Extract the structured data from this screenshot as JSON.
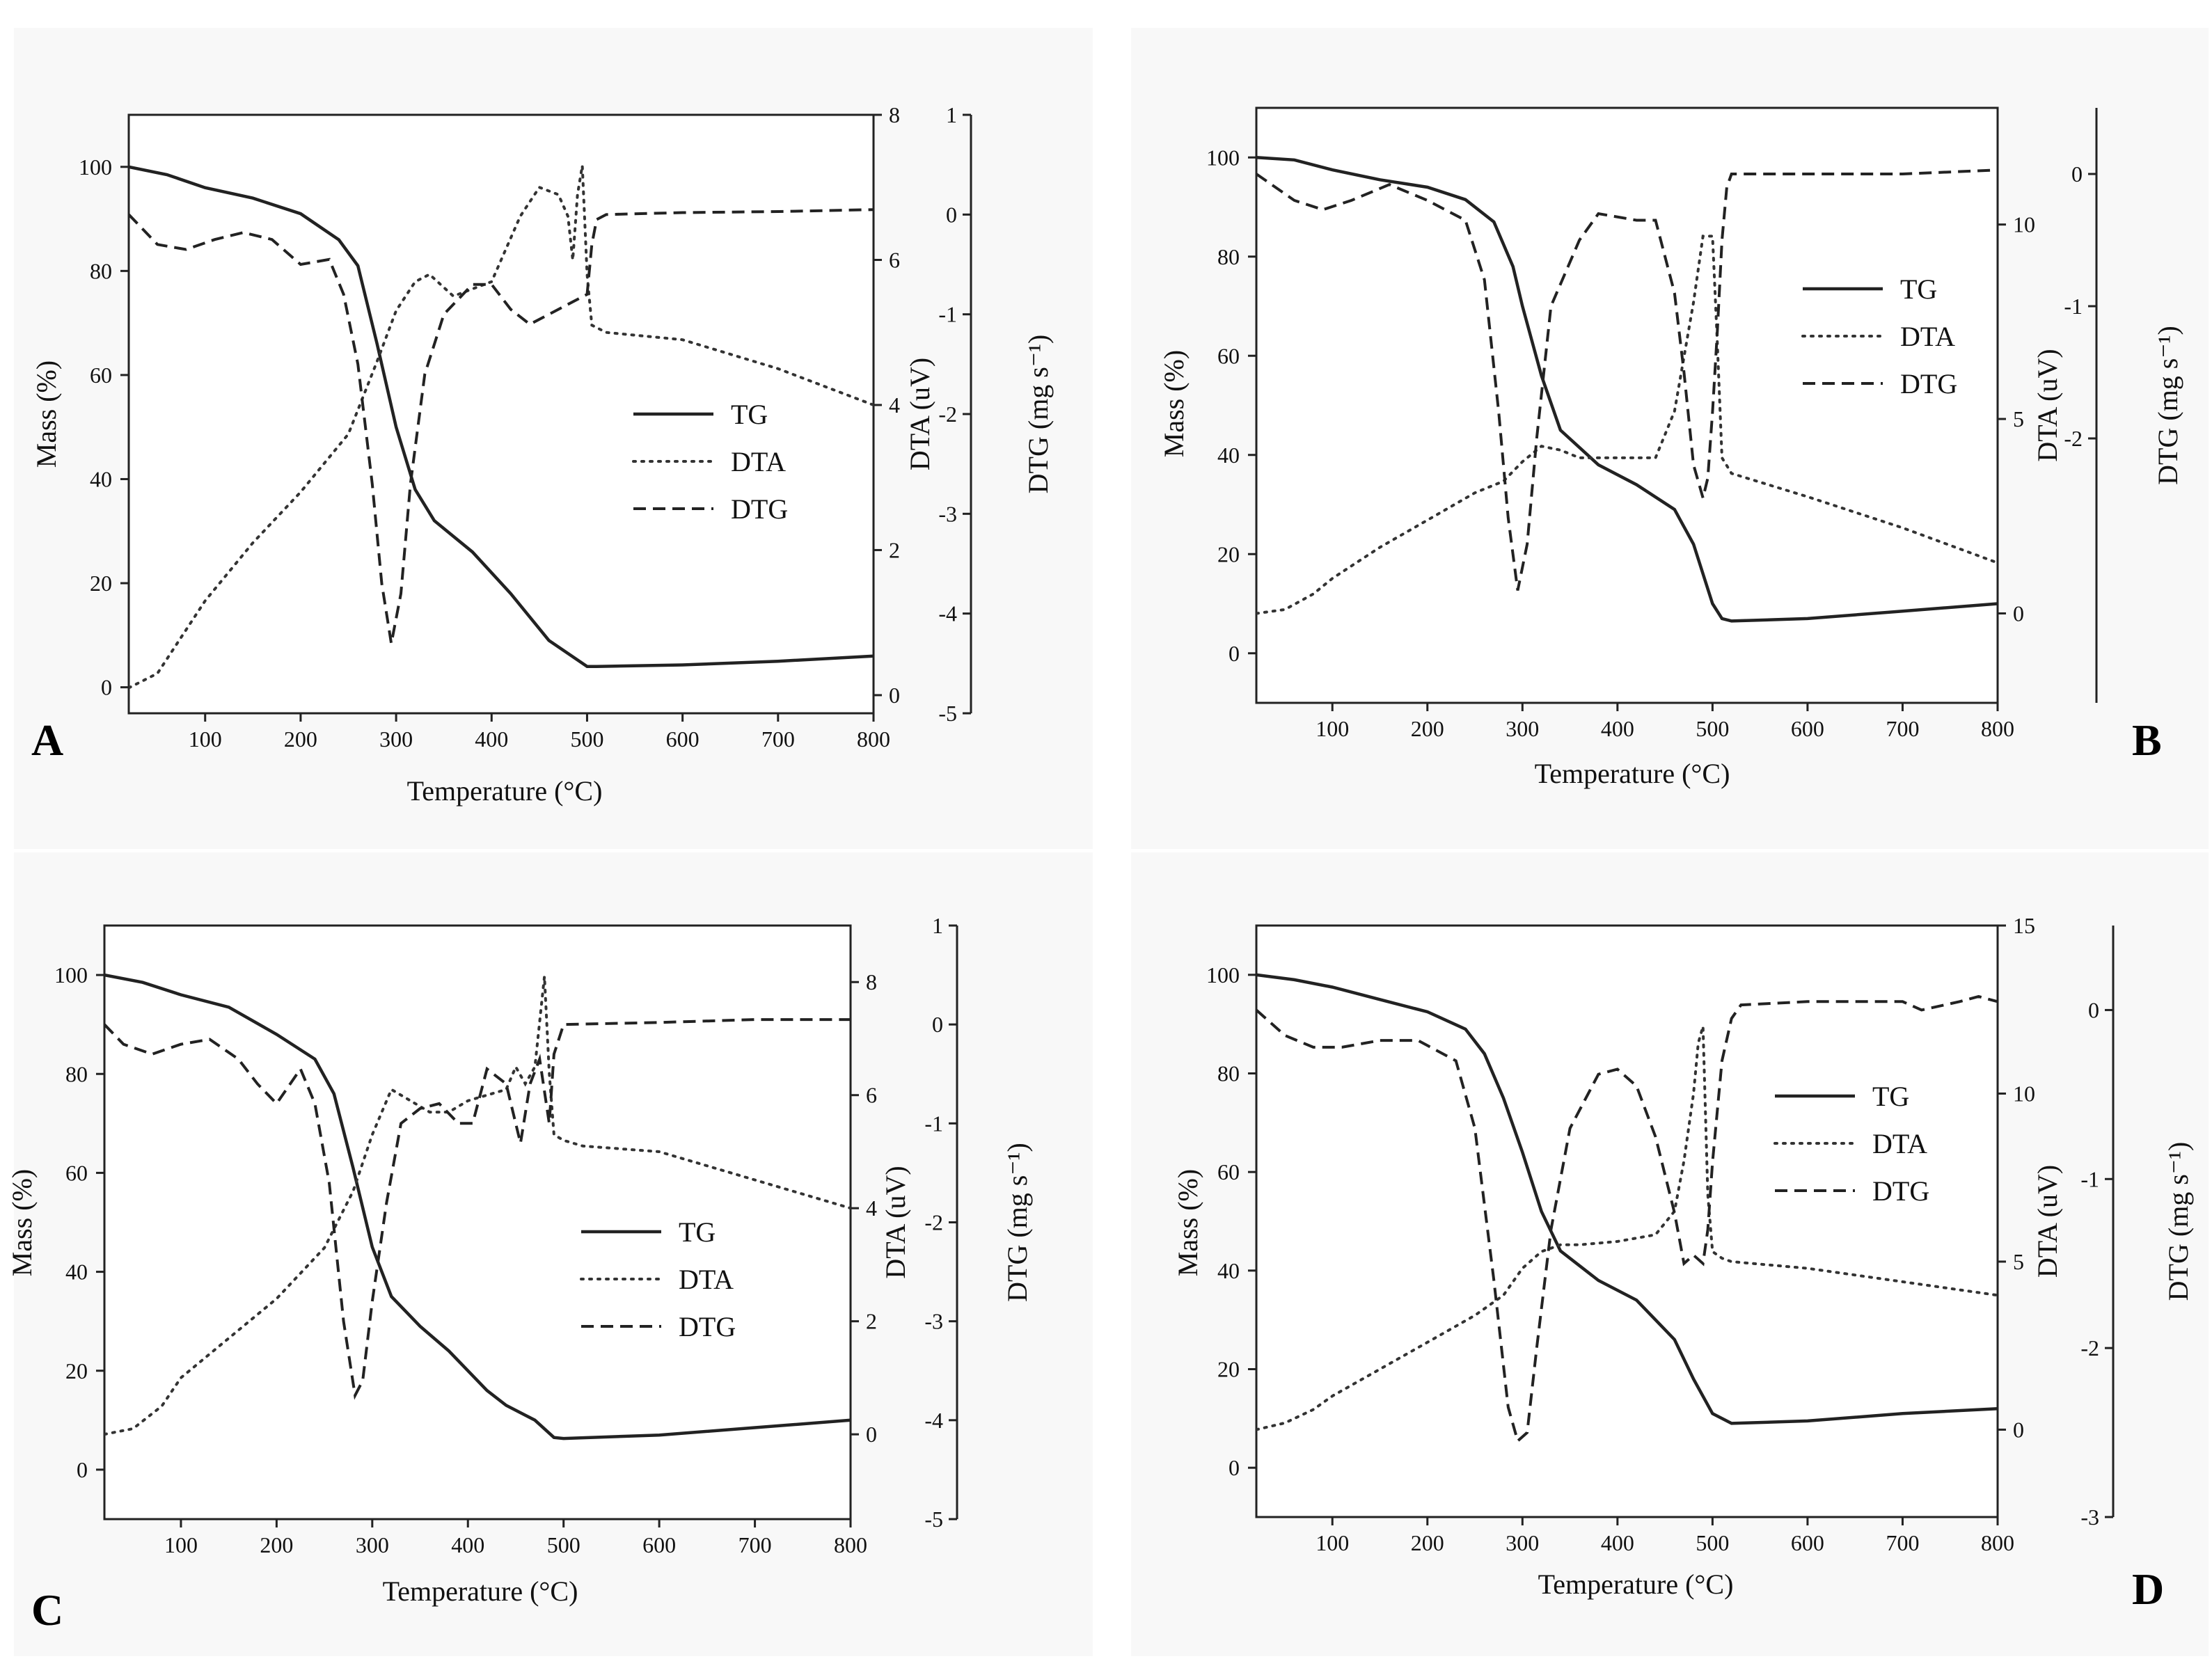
{
  "figure": {
    "panel_count": 4
  },
  "chart_data": [
    {
      "type": "line",
      "panel_label": "A",
      "xlabel": "Temperature (°C)",
      "x_ticks": [
        100,
        200,
        300,
        400,
        500,
        600,
        700,
        800
      ],
      "xlim": [
        20,
        800
      ],
      "axes": {
        "mass": {
          "label": "Mass (%)",
          "lim": [
            -5,
            110
          ],
          "ticks": [
            0,
            20,
            40,
            60,
            80,
            100
          ]
        },
        "dta": {
          "label": "DTA (uV)",
          "lim": [
            -0.25,
            8
          ],
          "ticks": [
            0,
            2,
            4,
            6,
            8
          ]
        },
        "dtg": {
          "label": "DTG (mg s⁻¹)",
          "lim": [
            -5,
            1
          ],
          "ticks": [
            -5,
            -4,
            -3,
            -2,
            -1,
            0,
            1
          ]
        }
      },
      "legend": [
        "TG",
        "DTA",
        "DTG"
      ],
      "series": [
        {
          "name": "TG",
          "axis": "mass",
          "x": [
            20,
            60,
            100,
            150,
            200,
            240,
            260,
            280,
            300,
            320,
            340,
            380,
            420,
            460,
            500,
            510,
            600,
            700,
            800
          ],
          "y": [
            100,
            98.5,
            96,
            94,
            91,
            86,
            81,
            66,
            50,
            38,
            32,
            26,
            18,
            9,
            4,
            4,
            4.3,
            5,
            6
          ]
        },
        {
          "name": "DTA",
          "axis": "dta",
          "x": [
            20,
            50,
            80,
            100,
            150,
            200,
            250,
            280,
            300,
            320,
            335,
            360,
            400,
            430,
            450,
            470,
            480,
            485,
            490,
            495,
            500,
            505,
            520,
            600,
            700,
            800
          ],
          "y": [
            0.1,
            0.3,
            0.9,
            1.3,
            2.1,
            2.8,
            3.6,
            4.6,
            5.3,
            5.7,
            5.8,
            5.5,
            5.7,
            6.6,
            7.0,
            6.9,
            6.6,
            6.0,
            6.9,
            7.3,
            5.8,
            5.1,
            5.0,
            4.9,
            4.5,
            4.0
          ]
        },
        {
          "name": "DTG",
          "axis": "dtg",
          "x": [
            20,
            50,
            80,
            110,
            140,
            170,
            200,
            230,
            245,
            260,
            275,
            285,
            295,
            305,
            315,
            330,
            350,
            380,
            400,
            420,
            440,
            460,
            480,
            500,
            505,
            510,
            520,
            600,
            700,
            800
          ],
          "y": [
            0,
            -0.3,
            -0.35,
            -0.25,
            -0.18,
            -0.25,
            -0.5,
            -0.45,
            -0.8,
            -1.5,
            -2.7,
            -3.7,
            -4.3,
            -3.8,
            -2.7,
            -1.6,
            -1.0,
            -0.7,
            -0.7,
            -0.95,
            -1.1,
            -1.0,
            -0.9,
            -0.8,
            -0.3,
            -0.05,
            0,
            0.02,
            0.03,
            0.05
          ]
        }
      ]
    },
    {
      "type": "line",
      "panel_label": "B",
      "xlabel": "Temperature (°C)",
      "x_ticks": [
        100,
        200,
        300,
        400,
        500,
        600,
        700,
        800
      ],
      "xlim": [
        20,
        800
      ],
      "axes": {
        "mass": {
          "label": "Mass (%)",
          "lim": [
            -10,
            110
          ],
          "ticks": [
            0,
            20,
            40,
            60,
            80,
            100
          ]
        },
        "dta": {
          "label": "DTA (uV)",
          "lim": [
            -2.3,
            13
          ],
          "ticks": [
            0,
            5,
            10
          ]
        },
        "dtg": {
          "label": "DTG (mg s⁻¹)",
          "lim": [
            -4,
            0.5
          ],
          "ticks": [
            -2,
            -1,
            0
          ]
        }
      },
      "legend": [
        "TG",
        "DTA",
        "DTG"
      ],
      "series": [
        {
          "name": "TG",
          "axis": "mass",
          "x": [
            20,
            60,
            100,
            150,
            200,
            240,
            270,
            290,
            300,
            320,
            340,
            380,
            420,
            460,
            480,
            500,
            510,
            520,
            600,
            700,
            800
          ],
          "y": [
            100,
            99.5,
            97.5,
            95.5,
            94,
            91.5,
            87,
            78,
            70,
            56,
            45,
            38,
            34,
            29,
            22,
            10,
            7,
            6.5,
            7,
            8.5,
            10
          ]
        },
        {
          "name": "DTA",
          "axis": "dta",
          "x": [
            20,
            50,
            80,
            100,
            150,
            200,
            250,
            280,
            300,
            320,
            340,
            360,
            400,
            440,
            460,
            480,
            490,
            500,
            505,
            510,
            515,
            520,
            600,
            700,
            800
          ],
          "y": [
            0,
            0.1,
            0.5,
            0.9,
            1.7,
            2.4,
            3.1,
            3.4,
            3.9,
            4.3,
            4.2,
            4.0,
            4.0,
            4.0,
            5.2,
            8.0,
            9.7,
            9.7,
            7.0,
            4.0,
            3.8,
            3.6,
            3.0,
            2.2,
            1.3
          ]
        },
        {
          "name": "DTG",
          "axis": "dtg",
          "x": [
            20,
            60,
            90,
            120,
            160,
            200,
            240,
            260,
            275,
            285,
            295,
            305,
            315,
            330,
            360,
            380,
            420,
            440,
            460,
            470,
            480,
            490,
            495,
            500,
            505,
            510,
            515,
            520,
            600,
            700,
            800
          ],
          "y": [
            0,
            -0.2,
            -0.27,
            -0.2,
            -0.08,
            -0.2,
            -0.35,
            -0.8,
            -1.8,
            -2.6,
            -3.15,
            -2.8,
            -2.0,
            -1.0,
            -0.5,
            -0.3,
            -0.35,
            -0.35,
            -0.9,
            -1.5,
            -2.2,
            -2.45,
            -2.3,
            -1.8,
            -1.2,
            -0.5,
            -0.1,
            0,
            0,
            0,
            0.03
          ]
        }
      ]
    },
    {
      "type": "line",
      "panel_label": "C",
      "xlabel": "Temperature (°C)",
      "x_ticks": [
        100,
        200,
        300,
        400,
        500,
        600,
        700,
        800
      ],
      "xlim": [
        20,
        800
      ],
      "axes": {
        "mass": {
          "label": "Mass (%)",
          "lim": [
            -10,
            110
          ],
          "ticks": [
            0,
            20,
            40,
            60,
            80,
            100
          ]
        },
        "dta": {
          "label": "DTA (uV)",
          "lim": [
            -1.5,
            9
          ],
          "ticks": [
            0,
            2,
            4,
            6,
            8
          ]
        },
        "dtg": {
          "label": "DTG (mg s⁻¹)",
          "lim": [
            -5,
            1
          ],
          "ticks": [
            -5,
            -4,
            -3,
            -2,
            -1,
            0,
            1
          ]
        }
      },
      "legend": [
        "TG",
        "DTA",
        "DTG"
      ],
      "series": [
        {
          "name": "TG",
          "axis": "mass",
          "x": [
            20,
            60,
            100,
            150,
            200,
            240,
            260,
            280,
            300,
            320,
            350,
            380,
            420,
            440,
            470,
            490,
            500,
            600,
            700,
            800
          ],
          "y": [
            100,
            98.5,
            96,
            93.5,
            88,
            83,
            76,
            61,
            45,
            35,
            29,
            24,
            16,
            13,
            10,
            6.5,
            6.3,
            7,
            8.5,
            10
          ]
        },
        {
          "name": "DTA",
          "axis": "dta",
          "x": [
            20,
            50,
            80,
            100,
            150,
            200,
            250,
            280,
            300,
            320,
            340,
            360,
            380,
            400,
            420,
            440,
            450,
            460,
            470,
            480,
            485,
            490,
            500,
            520,
            600,
            700,
            800
          ],
          "y": [
            0,
            0.1,
            0.5,
            1.0,
            1.7,
            2.4,
            3.3,
            4.3,
            5.3,
            6.1,
            5.9,
            5.7,
            5.7,
            5.9,
            6.0,
            6.1,
            6.5,
            6.2,
            6.5,
            8.1,
            6.4,
            5.3,
            5.2,
            5.1,
            5.0,
            4.5,
            4.0
          ]
        },
        {
          "name": "DTG",
          "axis": "dtg",
          "x": [
            20,
            40,
            70,
            100,
            130,
            160,
            180,
            200,
            225,
            240,
            255,
            270,
            282,
            290,
            300,
            315,
            330,
            350,
            370,
            390,
            405,
            420,
            440,
            455,
            465,
            475,
            485,
            490,
            500,
            600,
            700,
            800
          ],
          "y": [
            0,
            -0.2,
            -0.3,
            -0.2,
            -0.15,
            -0.35,
            -0.6,
            -0.8,
            -0.45,
            -0.8,
            -1.6,
            -3.0,
            -3.75,
            -3.6,
            -2.8,
            -1.8,
            -1.0,
            -0.85,
            -0.8,
            -1.0,
            -1.0,
            -0.45,
            -0.6,
            -1.2,
            -0.6,
            -0.35,
            -1.0,
            -0.3,
            0,
            0.02,
            0.05,
            0.05
          ]
        }
      ]
    },
    {
      "type": "line",
      "panel_label": "D",
      "xlabel": "Temperature (°C)",
      "x_ticks": [
        100,
        200,
        300,
        400,
        500,
        600,
        700,
        800
      ],
      "xlim": [
        20,
        800
      ],
      "axes": {
        "mass": {
          "label": "Mass (%)",
          "lim": [
            -10,
            110
          ],
          "ticks": [
            0,
            20,
            40,
            60,
            80,
            100
          ]
        },
        "dta": {
          "label": "DTA (uV)",
          "lim": [
            -2.6,
            15
          ],
          "ticks": [
            0,
            5,
            10,
            15
          ]
        },
        "dtg": {
          "label": "DTG (mg s⁻¹)",
          "lim": [
            -3,
            0.5
          ],
          "ticks": [
            -3,
            -2,
            -1,
            0
          ]
        }
      },
      "legend": [
        "TG",
        "DTA",
        "DTG"
      ],
      "series": [
        {
          "name": "TG",
          "axis": "mass",
          "x": [
            20,
            60,
            100,
            150,
            200,
            240,
            260,
            280,
            300,
            320,
            340,
            380,
            420,
            460,
            480,
            500,
            520,
            600,
            700,
            800
          ],
          "y": [
            100,
            99,
            97.5,
            95,
            92.5,
            89,
            84,
            75,
            64,
            52,
            44,
            38,
            34,
            26,
            18,
            11,
            9,
            9.5,
            11,
            12
          ]
        },
        {
          "name": "DTA",
          "axis": "dta",
          "x": [
            20,
            50,
            80,
            100,
            150,
            200,
            250,
            280,
            300,
            320,
            340,
            360,
            400,
            440,
            460,
            470,
            480,
            485,
            490,
            495,
            500,
            510,
            520,
            600,
            700,
            800
          ],
          "y": [
            0,
            0.2,
            0.6,
            1.0,
            1.8,
            2.6,
            3.4,
            4.0,
            4.8,
            5.3,
            5.5,
            5.5,
            5.6,
            5.8,
            6.5,
            8.0,
            10.0,
            11.5,
            12.0,
            7.0,
            5.3,
            5.1,
            5.0,
            4.8,
            4.4,
            4.0
          ]
        },
        {
          "name": "DTG",
          "axis": "dtg",
          "x": [
            20,
            50,
            80,
            110,
            150,
            190,
            230,
            250,
            270,
            285,
            295,
            305,
            315,
            330,
            350,
            380,
            400,
            420,
            440,
            460,
            470,
            480,
            490,
            495,
            500,
            510,
            520,
            530,
            600,
            700,
            720,
            760,
            780,
            800
          ],
          "y": [
            0,
            -0.15,
            -0.22,
            -0.22,
            -0.18,
            -0.18,
            -0.3,
            -0.7,
            -1.6,
            -2.35,
            -2.55,
            -2.5,
            -2.0,
            -1.3,
            -0.7,
            -0.38,
            -0.35,
            -0.45,
            -0.75,
            -1.2,
            -1.5,
            -1.45,
            -1.5,
            -1.3,
            -0.9,
            -0.3,
            -0.05,
            0.03,
            0.05,
            0.05,
            0,
            0.05,
            0.08,
            0.05
          ]
        }
      ]
    }
  ]
}
